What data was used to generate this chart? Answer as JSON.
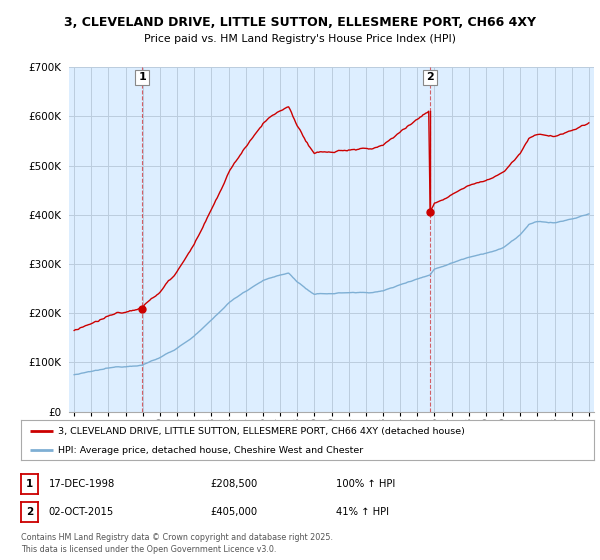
{
  "title1": "3, CLEVELAND DRIVE, LITTLE SUTTON, ELLESMERE PORT, CH66 4XY",
  "title2": "Price paid vs. HM Land Registry's House Price Index (HPI)",
  "ylim": [
    0,
    700000
  ],
  "yticks": [
    0,
    100000,
    200000,
    300000,
    400000,
    500000,
    600000,
    700000
  ],
  "yticklabels": [
    "£0",
    "£100K",
    "£200K",
    "£300K",
    "£400K",
    "£500K",
    "£600K",
    "£700K"
  ],
  "xlim_start": 1994.7,
  "xlim_end": 2025.3,
  "sale1_x": 1998.96,
  "sale1_y": 208500,
  "sale1_label": "1",
  "sale1_date": "17-DEC-1998",
  "sale1_price": "£208,500",
  "sale1_hpi": "100% ↑ HPI",
  "sale2_x": 2015.75,
  "sale2_y": 405000,
  "sale2_label": "2",
  "sale2_date": "02-OCT-2015",
  "sale2_price": "£405,000",
  "sale2_hpi": "41% ↑ HPI",
  "line1_color": "#cc0000",
  "line2_color": "#7eafd4",
  "bg_fill_color": "#ddeeff",
  "background_color": "#ffffff",
  "grid_color": "#bbccdd",
  "legend1": "3, CLEVELAND DRIVE, LITTLE SUTTON, ELLESMERE PORT, CH66 4XY (detached house)",
  "legend2": "HPI: Average price, detached house, Cheshire West and Chester",
  "footer": "Contains HM Land Registry data © Crown copyright and database right 2025.\nThis data is licensed under the Open Government Licence v3.0."
}
